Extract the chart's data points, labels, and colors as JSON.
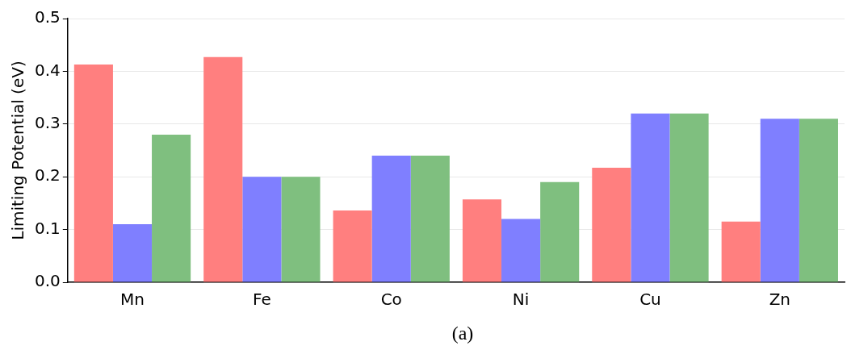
{
  "chart_data": {
    "type": "bar",
    "ylabel": "Limiting Potential (eV)",
    "categories": [
      "Mn",
      "Fe",
      "Co",
      "Ni",
      "Cu",
      "Zn"
    ],
    "series": [
      {
        "color": "#ff7f7f",
        "values": [
          0.413,
          0.427,
          0.136,
          0.157,
          0.217,
          0.115
        ]
      },
      {
        "color": "#7f7fff",
        "values": [
          0.11,
          0.2,
          0.24,
          0.12,
          0.32,
          0.31
        ]
      },
      {
        "color": "#7fbf7f",
        "values": [
          0.28,
          0.2,
          0.24,
          0.19,
          0.32,
          0.31
        ]
      }
    ],
    "ylim": [
      0,
      0.5
    ],
    "yticks": [
      {
        "value": 0,
        "label": "0.0"
      },
      0.1,
      0.2,
      0.3,
      0.4,
      0.5
    ],
    "grid": "y",
    "legend": false,
    "annotations": [
      "(a)"
    ]
  }
}
